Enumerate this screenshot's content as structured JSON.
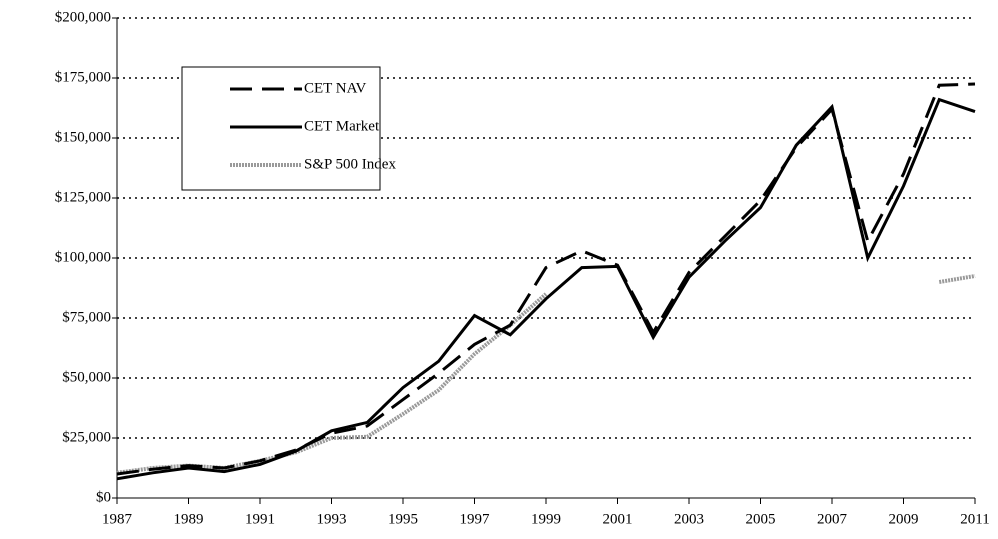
{
  "chart_data": {
    "type": "line",
    "x": [
      1987,
      1988,
      1989,
      1990,
      1991,
      1992,
      1993,
      1994,
      1995,
      1996,
      1997,
      1998,
      1999,
      2000,
      2001,
      2002,
      2003,
      2004,
      2005,
      2006,
      2007,
      2008,
      2009,
      2010,
      2011
    ],
    "series": [
      {
        "name": "CET NAV",
        "color": "#000000",
        "dash": "dashed",
        "values": [
          10000,
          12000,
          13500,
          12500,
          15500,
          20000,
          27000,
          30000,
          41000,
          52000,
          64000,
          72000,
          96000,
          103000,
          97000,
          69000,
          94000,
          109000,
          124000,
          146000,
          162000,
          107000,
          135000,
          172000,
          172500
        ]
      },
      {
        "name": "CET Market",
        "color": "#000000",
        "dash": "solid",
        "values": [
          8000,
          10500,
          12500,
          11000,
          14000,
          19500,
          28000,
          31500,
          46000,
          57000,
          76000,
          68000,
          83000,
          96000,
          96500,
          67000,
          92000,
          107000,
          121000,
          147000,
          163000,
          100000,
          130000,
          166000,
          161000
        ]
      },
      {
        "name": "S&P 500 Index",
        "color": "#9a9a9a",
        "dash": "dotted",
        "values": [
          10500,
          12500,
          13500,
          12500,
          15500,
          19000,
          25000,
          25500,
          35000,
          45000,
          60000,
          72000,
          85000,
          null,
          null,
          null,
          null,
          null,
          null,
          null,
          null,
          null,
          null,
          90000,
          92500
        ]
      }
    ],
    "xlim": [
      1987,
      2011
    ],
    "xticks": [
      1987,
      1989,
      1991,
      1993,
      1995,
      1997,
      1999,
      2001,
      2003,
      2005,
      2007,
      2009,
      2011
    ],
    "ylim": [
      0,
      200000
    ],
    "yticks": [
      {
        "value": 0,
        "label": "$0"
      },
      {
        "value": 25000,
        "label": "$25,000"
      },
      {
        "value": 50000,
        "label": "$50,000"
      },
      {
        "value": 75000,
        "label": "$75,000"
      },
      {
        "value": 100000,
        "label": "$100,000"
      },
      {
        "value": 125000,
        "label": "$125,000"
      },
      {
        "value": 150000,
        "label": "$150,000"
      },
      {
        "value": 175000,
        "label": "$175,000"
      },
      {
        "value": 200000,
        "label": "$200,000"
      }
    ],
    "grid": true,
    "legend": "upper left"
  }
}
